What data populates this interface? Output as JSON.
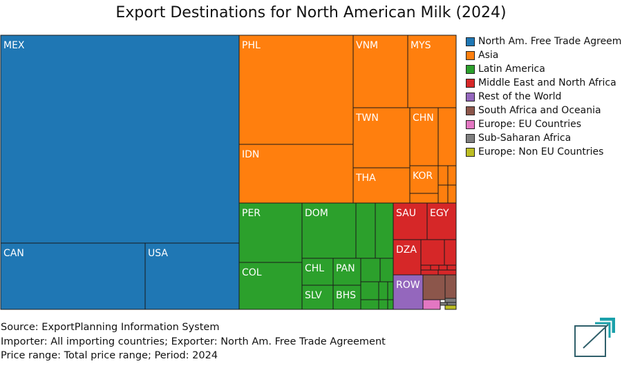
{
  "title": "Export Destinations for North American Milk (2024)",
  "legend": [
    {
      "name": "North Am. Free Trade Agreement",
      "color": "#1f77b4"
    },
    {
      "name": "Asia",
      "color": "#ff7f0e"
    },
    {
      "name": "Latin America",
      "color": "#2ca02c"
    },
    {
      "name": "Middle East and North Africa",
      "color": "#d62728"
    },
    {
      "name": "Rest of the World",
      "color": "#9467bd"
    },
    {
      "name": "South Africa and Oceania",
      "color": "#8c564b"
    },
    {
      "name": "Europe: EU Countries",
      "color": "#e377c2"
    },
    {
      "name": "Sub-Saharan Africa",
      "color": "#7f7f7f"
    },
    {
      "name": "Europe: Non EU Countries",
      "color": "#bcbd22"
    }
  ],
  "footer": {
    "source": "Source: ExportPlanning Information System",
    "importer": "Importer: All importing countries; Exporter: North Am. Free Trade Agreement",
    "price": "Price range: Total price range; Period: 2024"
  },
  "chart_data": {
    "type": "treemap",
    "title": "Export Destinations for North American Milk (2024)",
    "unit": "share of export value (%), estimated from tile areas",
    "groups": [
      {
        "group": "North Am. Free Trade Agreement",
        "items": [
          {
            "label": "MEX",
            "value": 34.7
          },
          {
            "label": "CAN",
            "value": 7.8
          },
          {
            "label": "USA",
            "value": 5.0
          }
        ]
      },
      {
        "group": "Asia",
        "items": [
          {
            "label": "PHL",
            "value": 8.2
          },
          {
            "label": "IDN",
            "value": 4.3
          },
          {
            "label": "VNM",
            "value": 2.8
          },
          {
            "label": "MYS",
            "value": 2.3
          },
          {
            "label": "TWN",
            "value": 2.8
          },
          {
            "label": "THA",
            "value": 1.6
          },
          {
            "label": "CHN",
            "value": 1.1
          },
          {
            "label": "",
            "value": 0.7
          },
          {
            "label": "KOR",
            "value": 0.5
          },
          {
            "label": "",
            "value": 0.2
          },
          {
            "label": "",
            "value": 0.1
          },
          {
            "label": "",
            "value": 0.1
          },
          {
            "label": "",
            "value": 0.1
          },
          {
            "label": "",
            "value": 0.1
          }
        ]
      },
      {
        "group": "Latin America",
        "items": [
          {
            "label": "PER",
            "value": 2.6
          },
          {
            "label": "COL",
            "value": 2.0
          },
          {
            "label": "DOM",
            "value": 2.3
          },
          {
            "label": "",
            "value": 0.8
          },
          {
            "label": "",
            "value": 0.7
          },
          {
            "label": "CHL",
            "value": 1.1
          },
          {
            "label": "SLV",
            "value": 0.9
          },
          {
            "label": "PAN",
            "value": 1.0
          },
          {
            "label": "BHS",
            "value": 0.9
          },
          {
            "label": "",
            "value": 0.4
          },
          {
            "label": "",
            "value": 0.3
          },
          {
            "label": "",
            "value": 0.4
          },
          {
            "label": "",
            "value": 0.2
          },
          {
            "label": "",
            "value": 0.2
          },
          {
            "label": "",
            "value": 0.1
          },
          {
            "label": "",
            "value": 0.1
          },
          {
            "label": "",
            "value": 0.1
          }
        ]
      },
      {
        "group": "Middle East and North Africa",
        "items": [
          {
            "label": "SAU",
            "value": 1.1
          },
          {
            "label": "EGY",
            "value": 0.9
          },
          {
            "label": "DZA",
            "value": 0.8
          },
          {
            "label": "",
            "value": 0.5
          },
          {
            "label": "",
            "value": 0.3
          },
          {
            "label": "",
            "value": 0.1
          },
          {
            "label": "",
            "value": 0.1
          },
          {
            "label": "",
            "value": 0.1
          },
          {
            "label": "",
            "value": 0.1
          },
          {
            "label": "",
            "value": 0.1
          },
          {
            "label": "",
            "value": 0.1
          }
        ]
      },
      {
        "group": "Rest of the World",
        "items": [
          {
            "label": "ROW",
            "value": 0.8
          }
        ]
      },
      {
        "group": "South Africa and Oceania",
        "items": [
          {
            "label": "",
            "value": 0.5
          },
          {
            "label": "",
            "value": 0.3
          }
        ]
      },
      {
        "group": "Europe: EU Countries",
        "items": [
          {
            "label": "",
            "value": 0.2
          }
        ]
      },
      {
        "group": "Sub-Saharan Africa",
        "items": [
          {
            "label": "",
            "value": 0.1
          },
          {
            "label": "",
            "value": 0.1
          },
          {
            "label": "",
            "value": 0.1
          }
        ]
      },
      {
        "group": "Europe: Non EU Countries",
        "items": [
          {
            "label": "",
            "value": 0.1
          }
        ]
      }
    ]
  }
}
